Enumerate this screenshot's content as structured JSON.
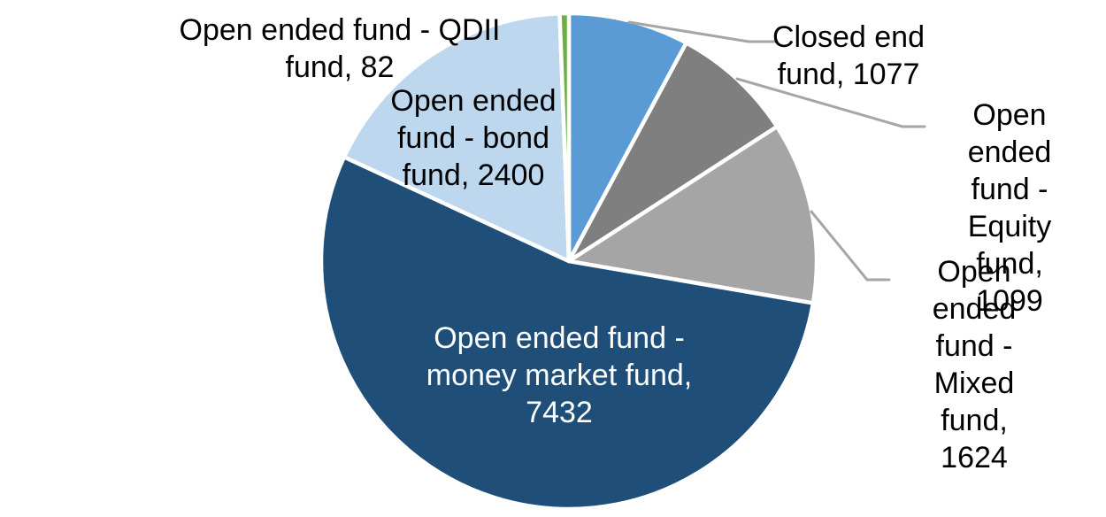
{
  "chart_data": {
    "type": "pie",
    "title": "",
    "total": 13714,
    "order": "clockwise-from-12-oclock",
    "background": "#FFFFFF",
    "slice_border_color": "#FFFFFF",
    "leader_line_color": "#A6A6A6",
    "label_color": "#000000",
    "inside_label_color": "#FFFFFF",
    "slices": [
      {
        "label": "Closed end fund",
        "value": 1077,
        "color": "#5B9BD5",
        "label_position": "outside"
      },
      {
        "label": "Open ended fund - Equity fund",
        "value": 1099,
        "color": "#7F7F7F",
        "label_position": "outside"
      },
      {
        "label": "Open ended fund - Mixed fund",
        "value": 1624,
        "color": "#A5A5A5",
        "label_position": "outside"
      },
      {
        "label": "Open ended fund - money market fund",
        "value": 7432,
        "color": "#1F4E79",
        "label_position": "inside"
      },
      {
        "label": "Open ended fund - bond fund",
        "value": 2400,
        "color": "#BDD7EE",
        "label_position": "outside"
      },
      {
        "label": "Open ended fund - QDII fund",
        "value": 82,
        "color": "#70AD47",
        "label_position": "outside"
      }
    ]
  },
  "callouts": [
    {
      "id": "qdii",
      "text": "Open ended fund - QDII\nfund, 82"
    },
    {
      "id": "bond",
      "text": "Open ended\nfund - bond\nfund, 2400"
    },
    {
      "id": "closed",
      "text": "Closed end\nfund, 1077"
    },
    {
      "id": "equity",
      "text": "Open ended\nfund - Equity\nfund, 1099"
    },
    {
      "id": "mixed",
      "text": "Open ended\nfund - Mixed\nfund, 1624"
    },
    {
      "id": "mmf",
      "text": "Open ended fund -\nmoney market fund,\n7432"
    }
  ]
}
